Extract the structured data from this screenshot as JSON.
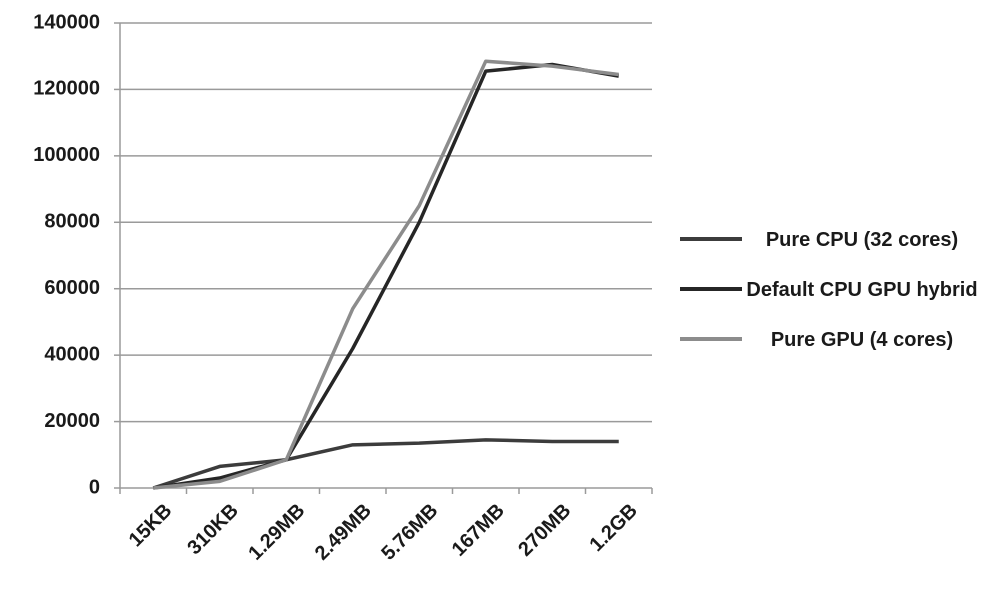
{
  "chart_data": {
    "type": "line",
    "categories": [
      "15KB",
      "310KB",
      "1.29MB",
      "2.49MB",
      "5.76MB",
      "167MB",
      "270MB",
      "1.2GB"
    ],
    "series": [
      {
        "name": "Pure CPU (32 cores)",
        "color": "#3c3c3c",
        "values": [
          0,
          6500,
          8500,
          13000,
          13500,
          14500,
          14000,
          14000
        ]
      },
      {
        "name": "Default CPU GPU hybrid",
        "color": "#262626",
        "values": [
          0,
          3000,
          8500,
          42000,
          80000,
          125500,
          127500,
          124000
        ]
      },
      {
        "name": "Pure GPU (4 cores)",
        "color": "#8c8c8c",
        "values": [
          0,
          2000,
          8500,
          54000,
          85000,
          128500,
          127000,
          124500
        ]
      }
    ],
    "ylim": [
      0,
      140000
    ],
    "yticks": [
      0,
      20000,
      40000,
      60000,
      80000,
      100000,
      120000,
      140000
    ],
    "grid": true,
    "legend": "right"
  }
}
